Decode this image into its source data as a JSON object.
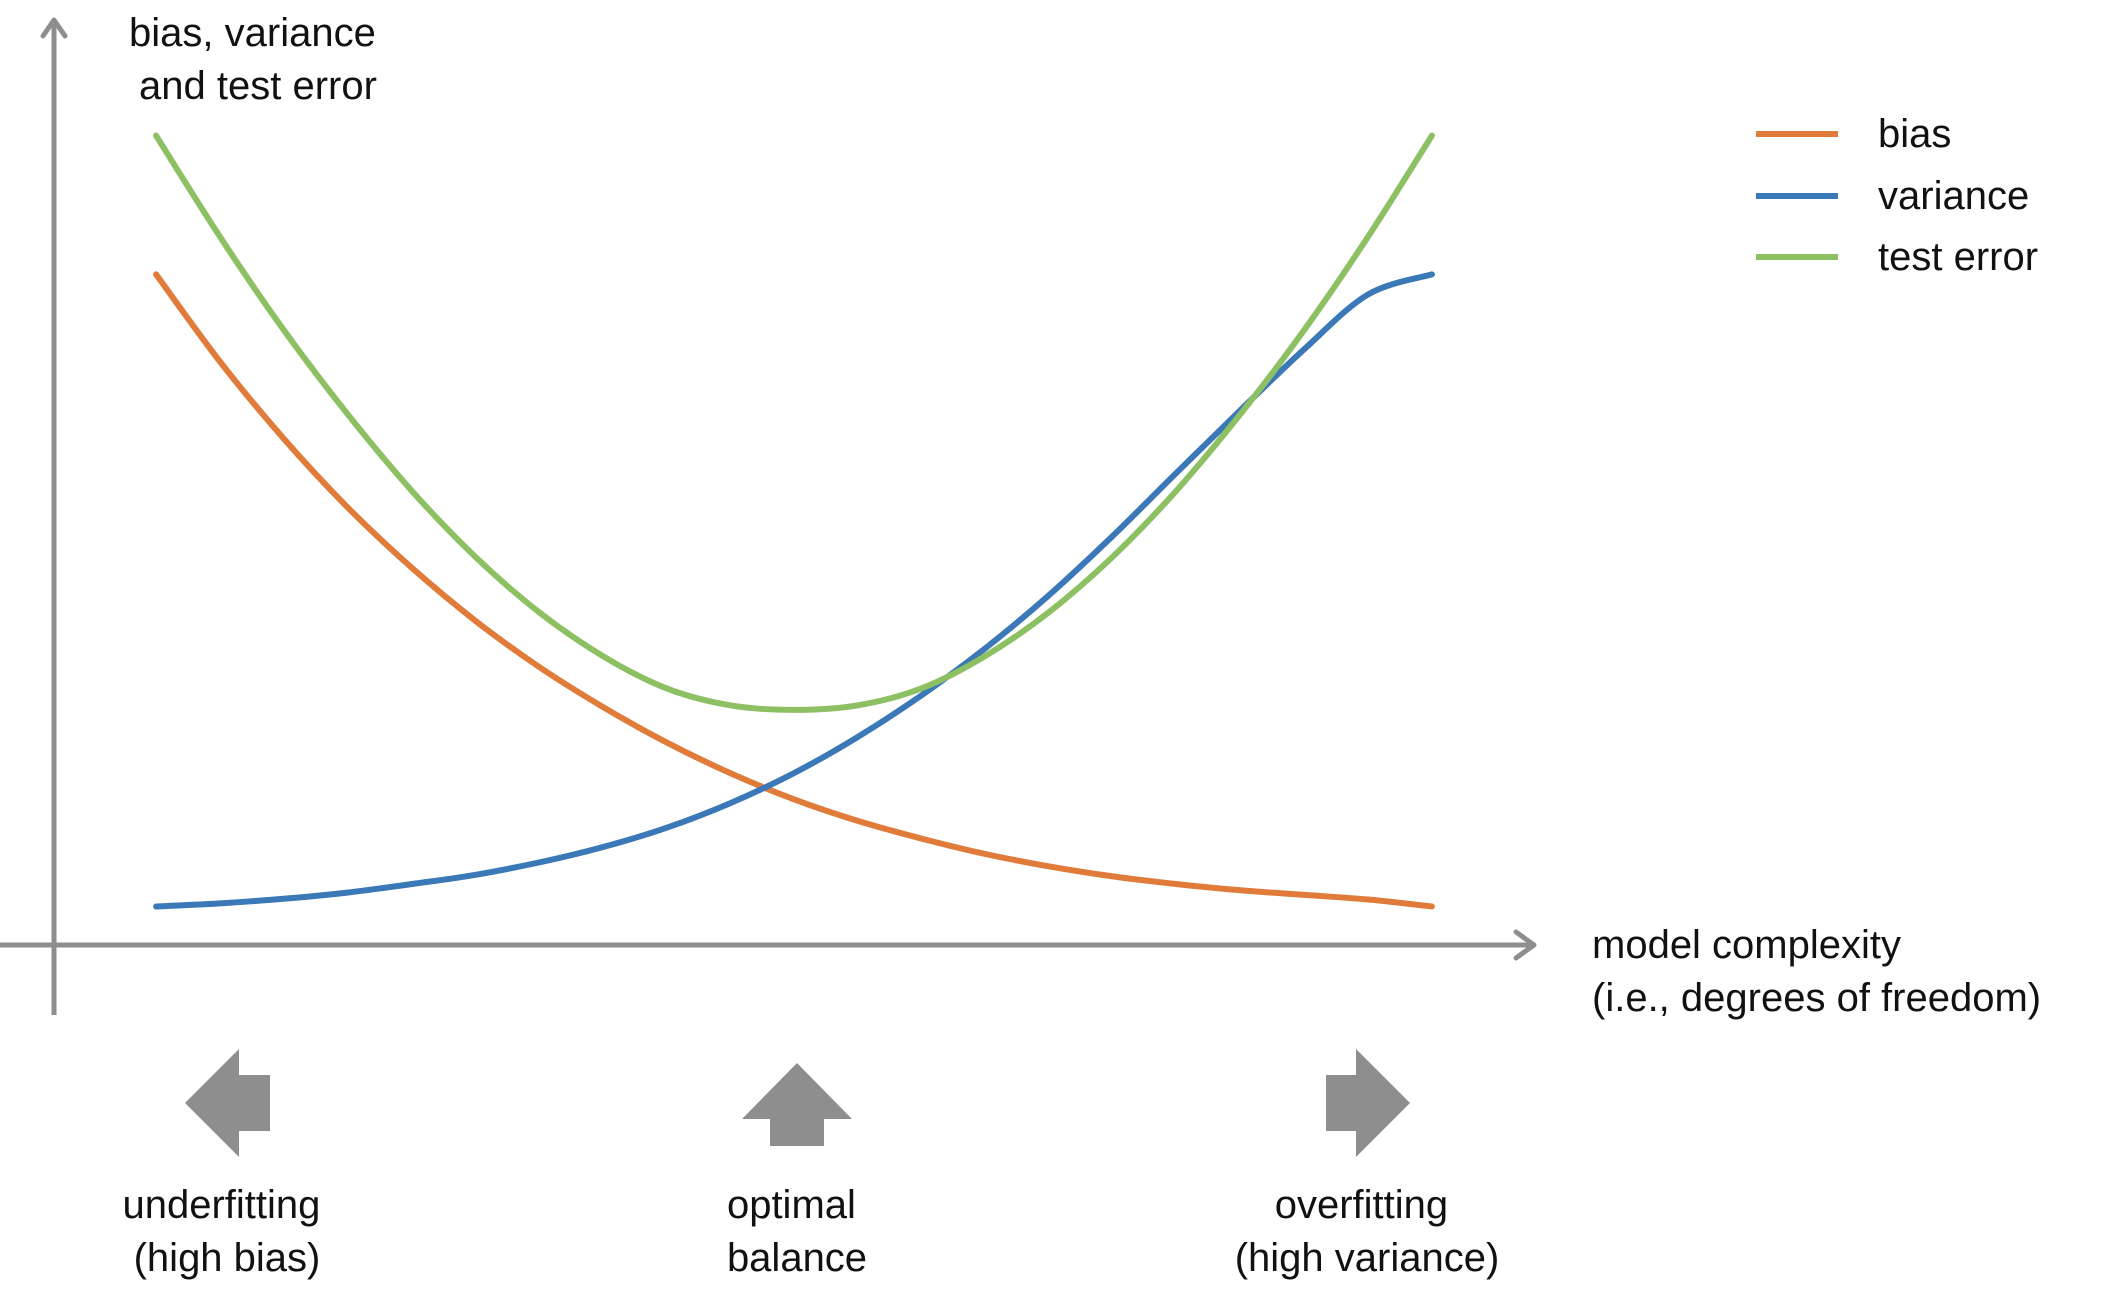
{
  "chart_data": {
    "type": "line",
    "title": "",
    "ylabel": [
      "bias, variance",
      "and test error"
    ],
    "xlabel": [
      "model complexity",
      "(i.e., degrees of freedom)"
    ],
    "x": [
      0,
      5,
      10,
      15,
      20,
      25,
      30,
      35,
      40,
      45,
      50,
      55,
      60,
      65,
      70,
      75,
      80,
      85,
      90,
      95,
      100
    ],
    "xlim": [
      -8,
      108
    ],
    "ylim": [
      -5,
      115
    ],
    "grid": false,
    "legend_position": "top-right",
    "series": [
      {
        "name": "bias",
        "color": "#E07B39",
        "values": [
          82,
          70.7,
          60.7,
          51.8,
          44.0,
          37.1,
          31.1,
          25.9,
          21.3,
          17.3,
          13.9,
          11.1,
          8.8,
          6.8,
          5.2,
          3.9,
          2.9,
          2.1,
          1.5,
          0.9,
          0.0
        ]
      },
      {
        "name": "variance",
        "color": "#3A78B8",
        "values": [
          0.0,
          0.4,
          1.0,
          1.8,
          2.9,
          4.1,
          5.7,
          7.7,
          10.2,
          13.4,
          17.3,
          22.0,
          27.4,
          33.5,
          40.4,
          48.1,
          56.3,
          64.4,
          72.3,
          79.4,
          82.0
        ]
      },
      {
        "name": "test error",
        "color": "#8DC063",
        "values": [
          100,
          86.9,
          74.8,
          63.9,
          54.0,
          45.4,
          38.2,
          32.5,
          28.3,
          26.1,
          25.5,
          26.1,
          28.3,
          32.5,
          38.2,
          45.4,
          54.0,
          63.9,
          74.8,
          86.9,
          100
        ]
      }
    ],
    "annotations": [
      {
        "id": "underfitting",
        "direction": "left",
        "x": 5.5,
        "lines": [
          "underfitting",
          "(high bias)"
        ]
      },
      {
        "id": "optimal",
        "direction": "up",
        "x": 50,
        "lines": [
          "optimal",
          "balance"
        ]
      },
      {
        "id": "overfitting",
        "direction": "right",
        "x": 94.5,
        "lines": [
          "overfitting",
          "(high variance)"
        ]
      }
    ],
    "colors": {
      "axis": "#8E8E8E",
      "arrow_fill": "#8E8E8E",
      "text": "#111111"
    }
  }
}
